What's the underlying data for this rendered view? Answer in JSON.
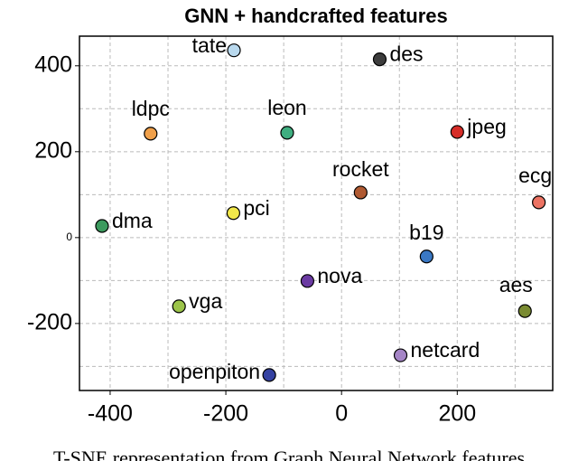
{
  "chart_data": {
    "type": "scatter",
    "title": "GNN + handcrafted features",
    "caption": "T-SNE representation from Graph Neural Network features",
    "xlim": [
      -453,
      365
    ],
    "ylim": [
      -356,
      469
    ],
    "xticks": [
      -400,
      -200,
      0,
      200
    ],
    "yticks": [
      -200,
      0,
      200,
      400
    ],
    "xminor": [
      -300,
      -100,
      100,
      300
    ],
    "yminor": [
      -300,
      -100,
      100,
      300
    ],
    "grid": true,
    "points": [
      {
        "name": "tate",
        "x": -186,
        "y": 436,
        "color": "#b9d9ee"
      },
      {
        "name": "des",
        "x": 66,
        "y": 415,
        "color": "#3d3d3d"
      },
      {
        "name": "ldpc",
        "x": -330,
        "y": 242,
        "color": "#f0a04a"
      },
      {
        "name": "leon",
        "x": -94,
        "y": 244,
        "color": "#3fae80"
      },
      {
        "name": "jpeg",
        "x": 200,
        "y": 246,
        "color": "#d62d28"
      },
      {
        "name": "rocket",
        "x": 33,
        "y": 105,
        "color": "#b05a32"
      },
      {
        "name": "ecg",
        "x": 341,
        "y": 82,
        "color": "#ec7363"
      },
      {
        "name": "dma",
        "x": -414,
        "y": 27,
        "color": "#3c9a5e"
      },
      {
        "name": "pci",
        "x": -187,
        "y": 57,
        "color": "#f2e84a"
      },
      {
        "name": "b19",
        "x": 147,
        "y": -44,
        "color": "#3a78c4"
      },
      {
        "name": "nova",
        "x": -59,
        "y": -101,
        "color": "#6a3aa2"
      },
      {
        "name": "aes",
        "x": 317,
        "y": -171,
        "color": "#7a8b32"
      },
      {
        "name": "vga",
        "x": -281,
        "y": -160,
        "color": "#9cc44a"
      },
      {
        "name": "netcard",
        "x": 102,
        "y": -274,
        "color": "#a585c6"
      },
      {
        "name": "openpiton",
        "x": -125,
        "y": -320,
        "color": "#3542a2"
      }
    ]
  }
}
